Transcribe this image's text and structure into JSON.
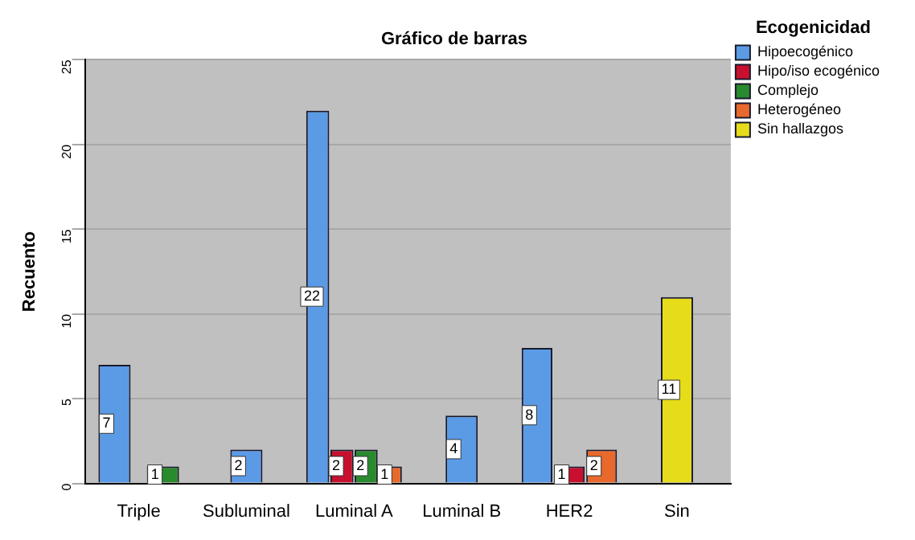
{
  "chart_data": {
    "type": "bar",
    "title": "Gráfico de barras",
    "ylabel": "Recuento",
    "legend_title": "Ecogenicidad",
    "categories": [
      "Triple",
      "Subluminal",
      "Luminal A",
      "Luminal B",
      "HER2",
      "Sin"
    ],
    "series": [
      {
        "name": "Hipoecogénico",
        "color": "#5b9be6",
        "values": [
          7,
          2,
          22,
          4,
          8,
          null
        ]
      },
      {
        "name": "Hipo/iso ecogénico",
        "color": "#c8102e",
        "values": [
          null,
          null,
          2,
          null,
          1,
          null
        ]
      },
      {
        "name": "Complejo",
        "color": "#2a8a2e",
        "values": [
          1,
          null,
          2,
          null,
          null,
          null
        ]
      },
      {
        "name": "Heterogéneo",
        "color": "#e8692c",
        "values": [
          null,
          null,
          1,
          null,
          2,
          null
        ]
      },
      {
        "name": "Sin hallazgos",
        "color": "#e6dc1a",
        "values": [
          null,
          null,
          null,
          null,
          null,
          11
        ]
      }
    ],
    "ylim": [
      0,
      25
    ],
    "yticks": [
      0,
      5,
      10,
      15,
      20,
      25
    ],
    "grid": "y",
    "legend": "right",
    "data_labels": true
  }
}
